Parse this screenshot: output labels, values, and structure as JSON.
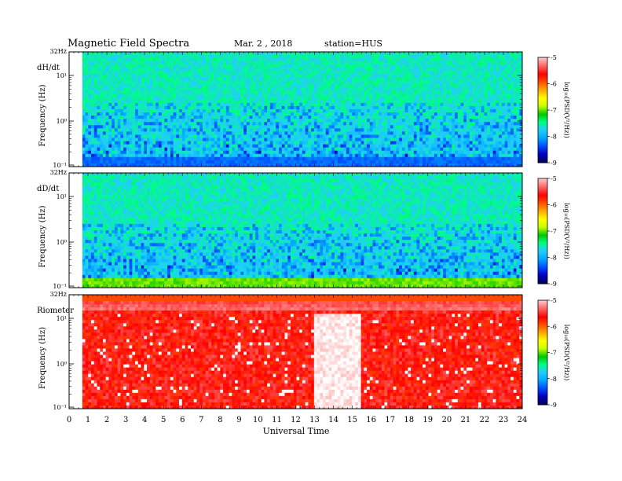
{
  "header": {
    "title": "Magnetic  Field  Spectra",
    "date": "Mar. 2  , 2018",
    "station": "station=HUS"
  },
  "colors": {
    "colormap": [
      "#000060",
      "#0000c8",
      "#0050ff",
      "#00aaff",
      "#22ccff",
      "#00ff80",
      "#00c800",
      "#c8ff00",
      "#ffff00",
      "#ffaa00",
      "#ff5000",
      "#ff0000",
      "#ff6060",
      "#ffc0c0",
      "#ffffff"
    ],
    "background": "#ffffff"
  },
  "chart_data": [
    {
      "type": "heatmap",
      "panel_label": "dH/dt",
      "ylabel": "Frequency  (Hz)",
      "y_top_label": "32Hz",
      "y_scale": "log",
      "y_ticks": [
        "10¹",
        "10⁰",
        "10⁻¹"
      ],
      "xlim": [
        0,
        24
      ],
      "data_start_hour": 0.7,
      "dominant_level": -7.6,
      "low_freq_band_level": -8.3,
      "colorbar": {
        "label": "log₁₀(PSD(V²/Hz))",
        "min": -9,
        "max": -5,
        "ticks": [
          "-5",
          "-6",
          "-7",
          "-8",
          "-9"
        ]
      }
    },
    {
      "type": "heatmap",
      "panel_label": "dD/dt",
      "ylabel": "Frequency  (Hz)",
      "y_top_label": "32Hz",
      "y_scale": "log",
      "y_ticks": [
        "10¹",
        "10⁰",
        "10⁻¹"
      ],
      "xlim": [
        0,
        24
      ],
      "data_start_hour": 0.7,
      "dominant_level": -7.6,
      "low_freq_band_level": -7.0,
      "colorbar": {
        "label": "log₁₀(PSD(V²/Hz))",
        "min": -9,
        "max": -5,
        "ticks": [
          "-5",
          "-6",
          "-7",
          "-8",
          "-9"
        ]
      }
    },
    {
      "type": "heatmap",
      "panel_label": "Riometer",
      "ylabel": "Frequency  (Hz)",
      "y_top_label": "32Hz",
      "y_scale": "log",
      "y_ticks": [
        "10¹",
        "10⁰",
        "10⁻¹"
      ],
      "xlim": [
        0,
        24
      ],
      "data_start_hour": 0.7,
      "dominant_level": -5.6,
      "high_freq_band_level": -5.2,
      "quiet_interval_hours": [
        13,
        15.5
      ],
      "colorbar": {
        "label": "log₁₀(PSD(V²/Hz))",
        "min": -9,
        "max": -5,
        "ticks": [
          "-5",
          "-6",
          "-7",
          "-8",
          "-9"
        ]
      }
    }
  ],
  "x_axis": {
    "label": "Universal Time",
    "ticks": [
      "0",
      "1",
      "2",
      "3",
      "4",
      "5",
      "6",
      "7",
      "8",
      "9",
      "10",
      "11",
      "12",
      "13",
      "14",
      "15",
      "16",
      "17",
      "18",
      "19",
      "20",
      "21",
      "22",
      "23",
      "24"
    ]
  }
}
